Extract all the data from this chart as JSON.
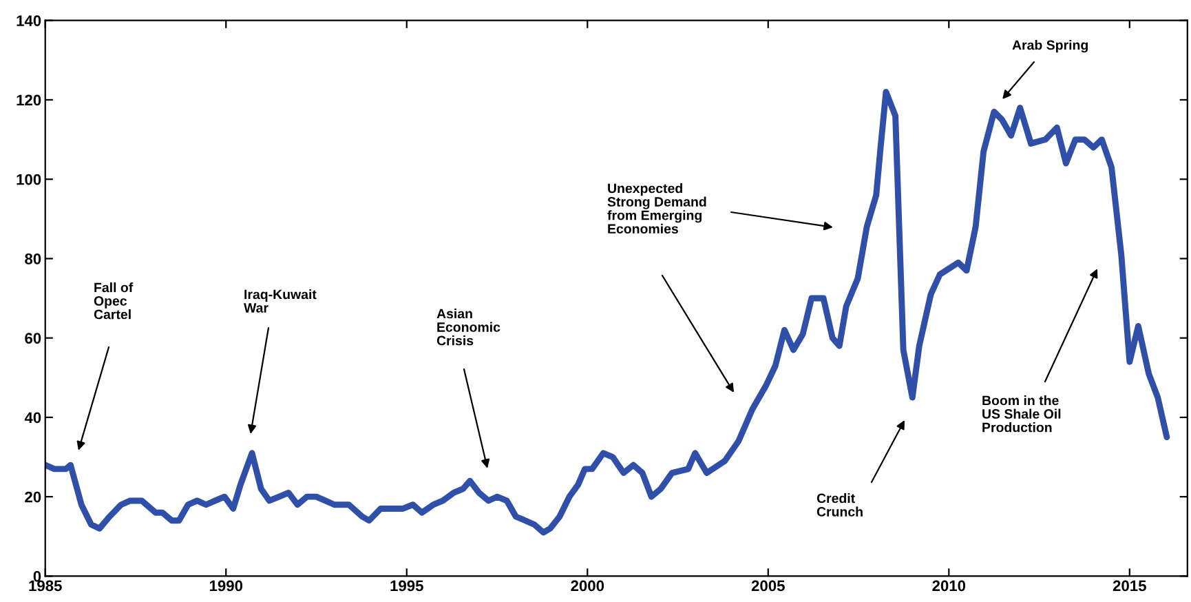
{
  "chart_data": {
    "type": "line",
    "x": [
      1985.0,
      1985.25,
      1985.57,
      1985.7,
      1986.0,
      1986.27,
      1986.5,
      1986.78,
      1987.1,
      1987.35,
      1987.67,
      1988.05,
      1988.24,
      1988.5,
      1988.7,
      1988.95,
      1989.2,
      1989.45,
      1989.7,
      1989.96,
      1990.2,
      1990.4,
      1990.72,
      1990.97,
      1991.2,
      1991.47,
      1991.73,
      1991.98,
      1992.24,
      1992.5,
      1992.75,
      1993.0,
      1993.4,
      1993.77,
      1993.96,
      1994.28,
      1994.53,
      1994.9,
      1995.17,
      1995.42,
      1995.74,
      1996.0,
      1996.3,
      1996.56,
      1996.75,
      1997.0,
      1997.26,
      1997.5,
      1997.77,
      1998.02,
      1998.28,
      1998.53,
      1998.78,
      1998.97,
      1999.23,
      1999.5,
      1999.74,
      1999.93,
      2000.13,
      2000.44,
      2000.7,
      2001.0,
      2001.27,
      2001.52,
      2001.77,
      2002.03,
      2002.34,
      2002.79,
      2002.98,
      2003.3,
      2003.8,
      2004.18,
      2004.56,
      2004.94,
      2005.2,
      2005.45,
      2005.7,
      2005.96,
      2006.2,
      2006.53,
      2006.78,
      2006.97,
      2007.16,
      2007.48,
      2007.73,
      2007.99,
      2008.1,
      2008.26,
      2008.52,
      2008.74,
      2008.99,
      2009.18,
      2009.5,
      2009.75,
      2010.26,
      2010.49,
      2010.74,
      2010.96,
      2011.25,
      2011.47,
      2011.72,
      2011.97,
      2012.27,
      2012.67,
      2012.99,
      2013.24,
      2013.5,
      2013.75,
      2014.0,
      2014.23,
      2014.5,
      2014.77,
      2015.0,
      2015.24,
      2015.53,
      2015.78,
      2016.03
    ],
    "series": [
      {
        "color": "#2f4fa8",
        "values": [
          28,
          27,
          27,
          28,
          18,
          13,
          12,
          15,
          18,
          19,
          19,
          16,
          16,
          14,
          14,
          18,
          19,
          18,
          19,
          20,
          17,
          23,
          31,
          22,
          19,
          20,
          21,
          18,
          20,
          20,
          19,
          18,
          18,
          15,
          14,
          17,
          17,
          17,
          18,
          16,
          18,
          19,
          21,
          22,
          24,
          21,
          19,
          20,
          19,
          15,
          14,
          13,
          11,
          12,
          15,
          20,
          23,
          27,
          27,
          31,
          30,
          26,
          28,
          26,
          20,
          22,
          26,
          27,
          31,
          26,
          29,
          34,
          42,
          48,
          53,
          62,
          57,
          61,
          70,
          70,
          60,
          58,
          68,
          75,
          88,
          96,
          107,
          122,
          116,
          57,
          45,
          58,
          71,
          76,
          79,
          77,
          88,
          107,
          117,
          115,
          111,
          118,
          109,
          110,
          113,
          104,
          110,
          110,
          108,
          110,
          103,
          81,
          54,
          63,
          51,
          45,
          35
        ]
      }
    ],
    "xlim": [
      1985,
      2016.6
    ],
    "ylim": [
      0,
      140
    ],
    "xticks": [
      1985,
      1990,
      1995,
      2000,
      2005,
      2010,
      2015
    ],
    "yticks": [
      0,
      20,
      40,
      60,
      80,
      100,
      120,
      140
    ],
    "grid": false,
    "marker": "none",
    "line_style": "solid",
    "annotations": [
      "Fall of\nOpec\nCartel",
      "Iraq-Kuwait\nWar",
      "Asian\nEconomic\nCrisis",
      "Unexpected\nStrong Demand\nfrom Emerging\nEconomies",
      "Credit\nCrunch",
      "Arab Spring",
      "Boom in the\nUS Shale Oil\nProduction"
    ]
  }
}
